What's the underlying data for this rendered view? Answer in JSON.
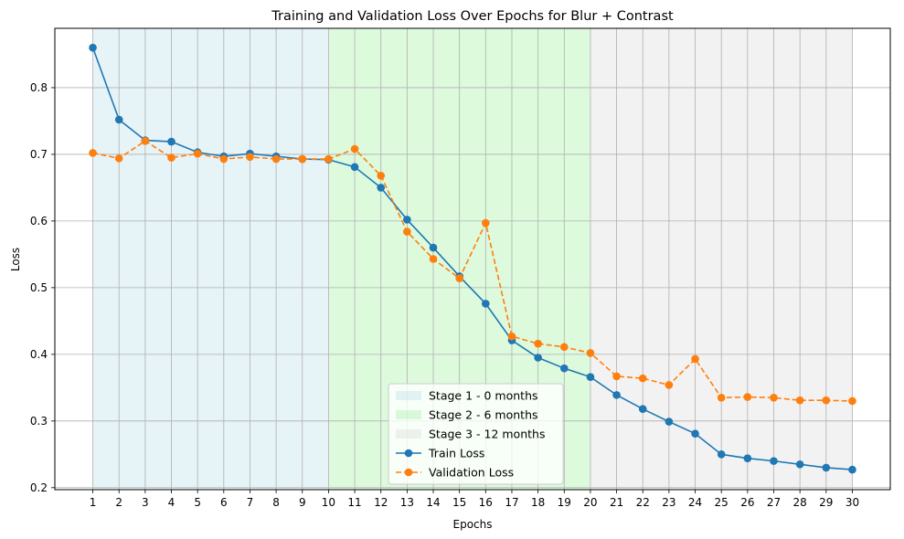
{
  "chart_data": {
    "type": "line",
    "title": "Training and Validation Loss Over Epochs for Blur + Contrast",
    "xlabel": "Epochs",
    "ylabel": "Loss",
    "x": [
      1,
      2,
      3,
      4,
      5,
      6,
      7,
      8,
      9,
      10,
      11,
      12,
      13,
      14,
      15,
      16,
      17,
      18,
      19,
      20,
      21,
      22,
      23,
      24,
      25,
      26,
      27,
      28,
      29,
      30
    ],
    "xlim": [
      -0.45,
      31.45
    ],
    "ylim": [
      0.197,
      0.889
    ],
    "xticks": [
      1,
      2,
      3,
      4,
      5,
      6,
      7,
      8,
      9,
      10,
      11,
      12,
      13,
      14,
      15,
      16,
      17,
      18,
      19,
      20,
      21,
      22,
      23,
      24,
      25,
      26,
      27,
      28,
      29,
      30
    ],
    "yticks": [
      0.2,
      0.3,
      0.4,
      0.5,
      0.6,
      0.7,
      0.8
    ],
    "grid": true,
    "legend_position": "lower-center",
    "series": [
      {
        "name": "Train Loss",
        "color": "#1f77b4",
        "linestyle": "solid",
        "marker": "circle",
        "values": [
          0.86,
          0.752,
          0.721,
          0.719,
          0.703,
          0.697,
          0.701,
          0.697,
          0.693,
          0.692,
          0.681,
          0.65,
          0.602,
          0.56,
          0.517,
          0.476,
          0.421,
          0.395,
          0.379,
          0.366,
          0.339,
          0.318,
          0.299,
          0.281,
          0.25,
          0.244,
          0.24,
          0.235,
          0.23,
          0.227
        ]
      },
      {
        "name": "Validation Loss",
        "color": "#ff7f0e",
        "linestyle": "dashed",
        "marker": "circle",
        "values": [
          0.702,
          0.694,
          0.72,
          0.695,
          0.701,
          0.693,
          0.696,
          0.693,
          0.693,
          0.693,
          0.708,
          0.668,
          0.584,
          0.543,
          0.514,
          0.597,
          0.427,
          0.416,
          0.411,
          0.402,
          0.367,
          0.364,
          0.354,
          0.393,
          0.335,
          0.336,
          0.335,
          0.331,
          0.331,
          0.33
        ]
      }
    ],
    "stages": [
      {
        "name": "Stage 1 - 0 months",
        "x_start": 1,
        "x_end": 10,
        "color": "#add8e6",
        "alpha": 0.3
      },
      {
        "name": "Stage 2 - 6 months",
        "x_start": 10,
        "x_end": 20,
        "color": "#90ee90",
        "alpha": 0.3
      },
      {
        "name": "Stage 3 - 12 months",
        "x_start": 20,
        "x_end": 30,
        "color": "#d3d3d3",
        "alpha": 0.3
      }
    ]
  }
}
